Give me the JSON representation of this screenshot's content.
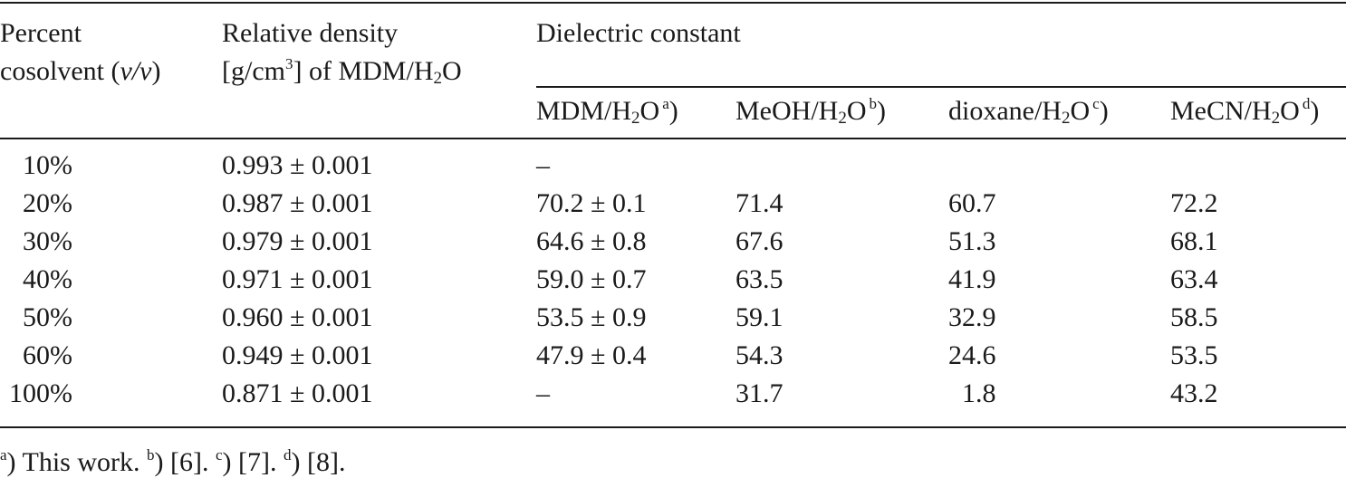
{
  "header": {
    "col_percent_line1": "Percent",
    "col_percent_line2_pre": "cosolvent (",
    "col_percent_line2_var": "v/v",
    "col_percent_line2_post": ")",
    "col_density_line1": "Relative density",
    "col_density_line2_pre": "[g/cm",
    "col_density_line2_sup": "3",
    "col_density_line2_mid": "] of MDM/H",
    "col_density_line2_sub": "2",
    "col_density_line2_post": "O",
    "col_dielectric": "Dielectric constant",
    "sub_columns": [
      {
        "pre": "MDM/H",
        "sub": "2",
        "post": "O",
        "mark": "a",
        "close": ")"
      },
      {
        "pre": "MeOH/H",
        "sub": "2",
        "post": "O",
        "mark": "b",
        "close": ")"
      },
      {
        "pre": "dioxane/H",
        "sub": "2",
        "post": "O",
        "mark": "c",
        "close": ")"
      },
      {
        "pre": "MeCN/H",
        "sub": "2",
        "post": "O",
        "mark": "d",
        "close": ")"
      }
    ]
  },
  "rows": [
    {
      "percent": "10%",
      "density": "0.993 ± 0.001",
      "mdm": "–",
      "meoh": "",
      "dioxane": "",
      "mecn": ""
    },
    {
      "percent": "20%",
      "density": "0.987 ± 0.001",
      "mdm": "70.2 ± 0.1",
      "meoh": "71.4",
      "dioxane": "60.7",
      "mecn": "72.2"
    },
    {
      "percent": "30%",
      "density": "0.979 ± 0.001",
      "mdm": "64.6 ± 0.8",
      "meoh": "67.6",
      "dioxane": "51.3",
      "mecn": "68.1"
    },
    {
      "percent": "40%",
      "density": "0.971 ± 0.001",
      "mdm": "59.0 ± 0.7",
      "meoh": "63.5",
      "dioxane": "41.9",
      "mecn": "63.4"
    },
    {
      "percent": "50%",
      "density": "0.960 ± 0.001",
      "mdm": "53.5 ± 0.9",
      "meoh": "59.1",
      "dioxane": "32.9",
      "mecn": "58.5"
    },
    {
      "percent": "60%",
      "density": "0.949 ± 0.001",
      "mdm": "47.9 ± 0.4",
      "meoh": "54.3",
      "dioxane": "24.6",
      "mecn": "53.5"
    },
    {
      "percent": "100%",
      "density": "0.871 ± 0.001",
      "mdm": "–",
      "meoh": "31.7",
      "dioxane": "1.8",
      "mecn": "43.2"
    }
  ],
  "footnotes": [
    {
      "mark": "a",
      "close": ")",
      "text": " This work. "
    },
    {
      "mark": "b",
      "close": ")",
      "text": " [6]. "
    },
    {
      "mark": "c",
      "close": ")",
      "text": " [7]. "
    },
    {
      "mark": "d",
      "close": ")",
      "text": " [8]."
    }
  ]
}
